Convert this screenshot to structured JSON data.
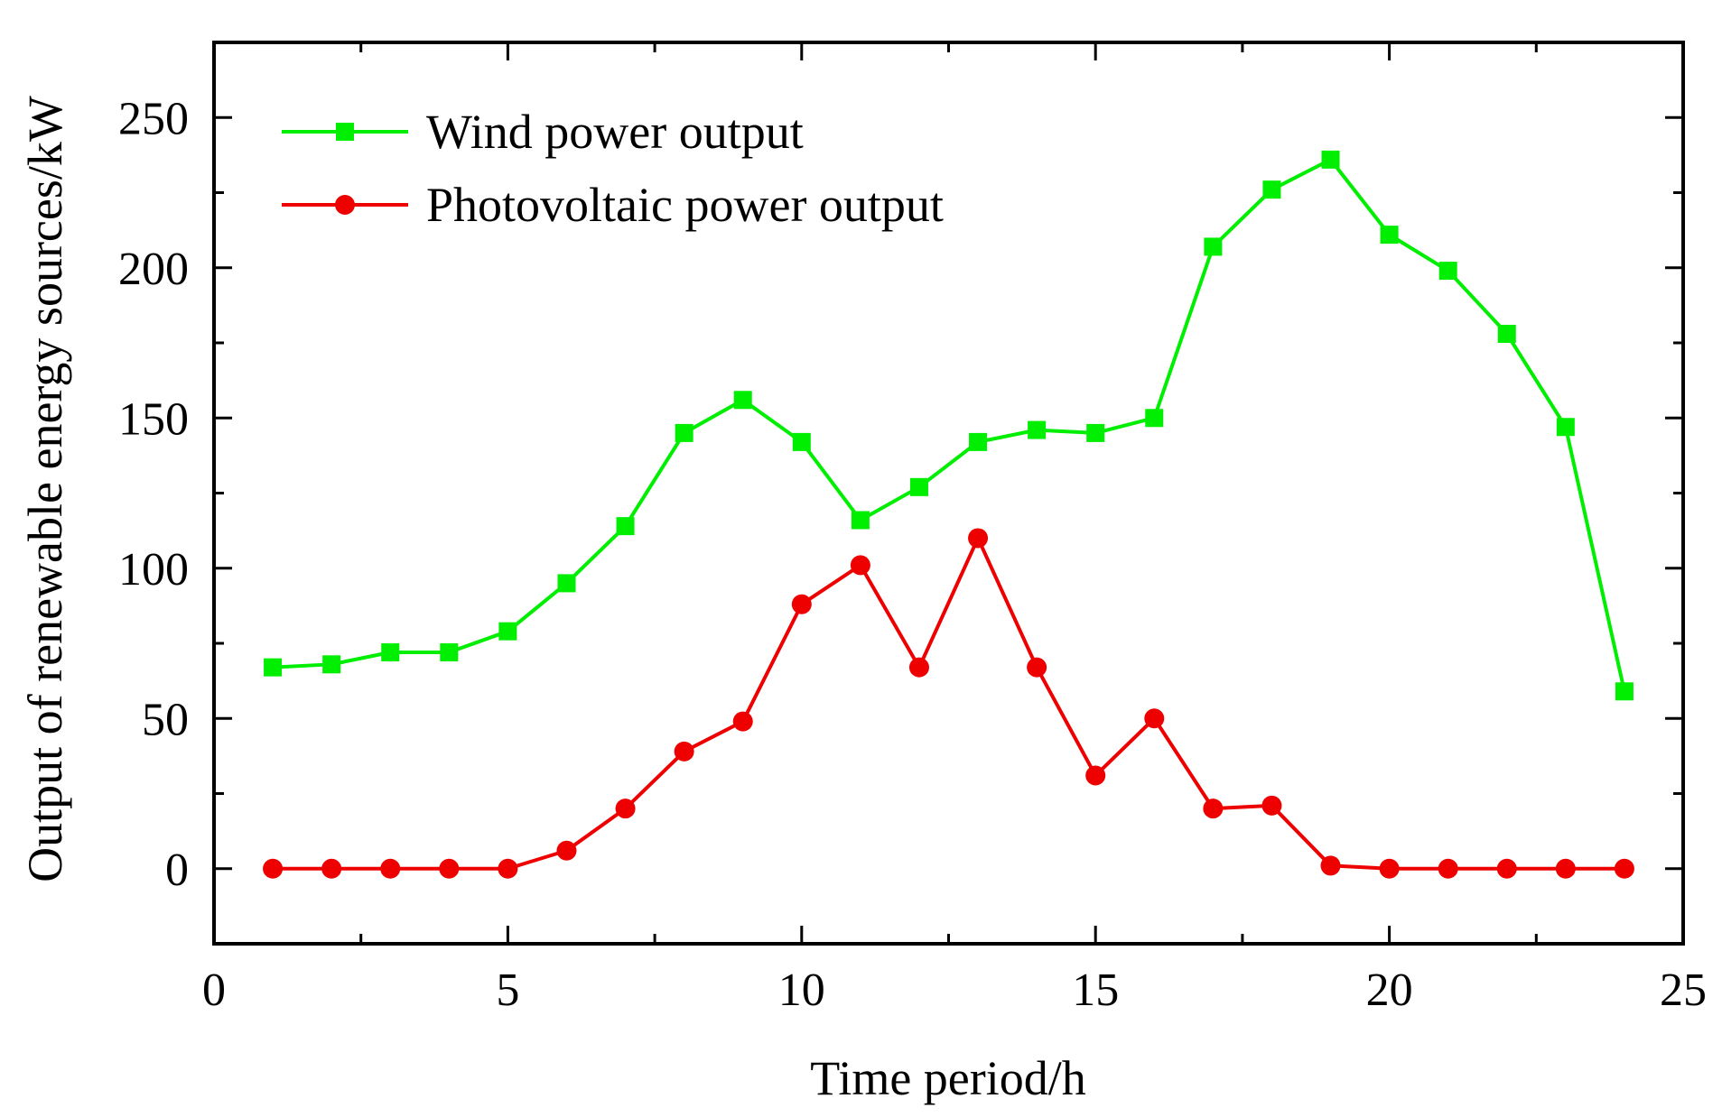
{
  "chart_data": {
    "type": "line",
    "title": "",
    "xlabel": "Time period/h",
    "ylabel": "Output of renewable energy sources/kW",
    "xlim": [
      0,
      25
    ],
    "ylim": [
      -25,
      275
    ],
    "xticks": [
      0,
      5,
      10,
      15,
      20,
      25
    ],
    "xtick_labels": [
      "0",
      "5",
      "10",
      "15",
      "20",
      "25"
    ],
    "yticks": [
      0,
      50,
      100,
      150,
      200,
      250
    ],
    "ytick_labels": [
      "0",
      "50",
      "100",
      "150",
      "200",
      "250"
    ],
    "grid": false,
    "legend_position": "top-left",
    "x": [
      1,
      2,
      3,
      4,
      5,
      6,
      7,
      8,
      9,
      10,
      11,
      12,
      13,
      14,
      15,
      16,
      17,
      18,
      19,
      20,
      21,
      22,
      23,
      24
    ],
    "series": [
      {
        "name": "Wind power output",
        "color": "#00ee00",
        "marker": "square",
        "values": [
          67,
          68,
          72,
          72,
          79,
          95,
          114,
          145,
          156,
          142,
          116,
          127,
          142,
          146,
          145,
          150,
          207,
          226,
          236,
          211,
          199,
          178,
          147,
          59
        ]
      },
      {
        "name": "Photovoltaic power output",
        "color": "#ee0000",
        "marker": "circle",
        "values": [
          0,
          0,
          0,
          0,
          0,
          6,
          20,
          39,
          49,
          88,
          101,
          67,
          110,
          67,
          31,
          50,
          20,
          21,
          1,
          0,
          0,
          0,
          0,
          0
        ]
      }
    ]
  }
}
